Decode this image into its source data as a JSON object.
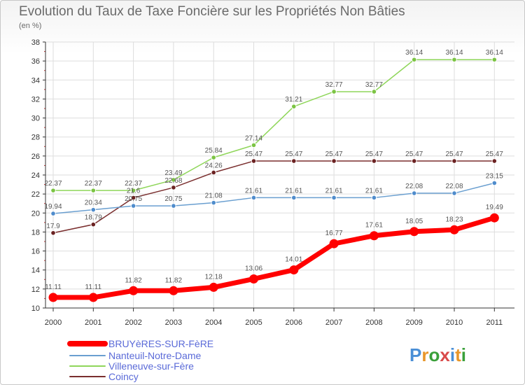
{
  "header": {
    "title": "Evolution du Taux de Taxe Foncière sur les Propriétés Non Bâties",
    "unit": "(en %)"
  },
  "logo": {
    "text": "Proxiti",
    "letter_colors": [
      "#4a8fd6",
      "#e8962a",
      "#3aa03a",
      "#d94a4a",
      "#4a8fd6",
      "#e8962a",
      "#3aa03a"
    ]
  },
  "chart_data": {
    "type": "line",
    "title": "Evolution du Taux de Taxe Foncière sur les Propriétés Non Bâties",
    "ylabel": "(en %)",
    "xlabel": "",
    "categories": [
      "2000",
      "2001",
      "2002",
      "2003",
      "2004",
      "2005",
      "2006",
      "2007",
      "2008",
      "2009",
      "2010",
      "2011"
    ],
    "ylim": [
      10,
      38
    ],
    "yticks": [
      "10",
      "12",
      "14",
      "16",
      "18",
      "20",
      "22",
      "24",
      "26",
      "28",
      "30",
      "32",
      "34",
      "36",
      "38"
    ],
    "grid": true,
    "legend_position": "bottom-left",
    "series": [
      {
        "name": "Villeneuve-sur-Fère",
        "color": "#8fd65a",
        "marker_color": "#7cc444",
        "values": [
          22.37,
          22.37,
          22.37,
          23.49,
          25.84,
          27.14,
          31.21,
          32.77,
          32.77,
          36.14,
          36.14,
          36.14
        ],
        "labels": [
          "22.37",
          "22.37",
          "22.37",
          "23.49",
          "25.84",
          "27.14",
          "31.21",
          "32.77",
          "32.77",
          "36.14",
          "36.14",
          "36.14"
        ]
      },
      {
        "name": "Coincy",
        "color": "#7a2e2e",
        "marker_color": "#6b2222",
        "values": [
          17.9,
          18.79,
          21.6,
          22.68,
          24.26,
          25.47,
          25.47,
          25.47,
          25.47,
          25.47,
          25.47,
          25.47
        ],
        "labels": [
          "17.9",
          "18.79",
          "21.6",
          "22.68",
          "24.26",
          "25.47",
          "25.47",
          "25.47",
          "25.47",
          "25.47",
          "25.47",
          "25.47"
        ]
      },
      {
        "name": "Nanteuil-Notre-Dame",
        "color": "#6a9fd0",
        "marker_color": "#4f8ccc",
        "values": [
          19.94,
          20.34,
          20.75,
          20.75,
          21.08,
          21.61,
          21.61,
          21.61,
          21.61,
          22.08,
          22.08,
          23.15
        ],
        "labels": [
          "19.94",
          "20.34",
          "20.75",
          "20.75",
          "21.08",
          "21.61",
          "21.61",
          "21.61",
          "21.61",
          "22.08",
          "22.08",
          "23.15"
        ]
      },
      {
        "name": "BRUYèRES-SUR-FèRE",
        "color": "#ff0000",
        "marker_color": "#ff0000",
        "values": [
          11.11,
          11.11,
          11.82,
          11.82,
          12.18,
          13.06,
          14.01,
          16.77,
          17.61,
          18.05,
          18.23,
          19.49
        ],
        "labels": [
          "11.11",
          "11.11",
          "11.82",
          "11.82",
          "12.18",
          "13.06",
          "14.01",
          "16.77",
          "17.61",
          "18.05",
          "18.23",
          "19.49"
        ]
      }
    ],
    "legend": [
      "BRUYèRES-SUR-FèRE",
      "Nanteuil-Notre-Dame",
      "Villeneuve-sur-Fère",
      "Coincy"
    ]
  }
}
